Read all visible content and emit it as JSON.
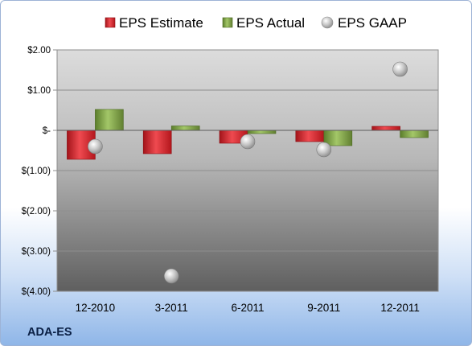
{
  "ticker": "ADA-ES",
  "colors": {
    "estimate": "#d81f26",
    "actual": "#7fa842",
    "gaap": "#b9b9b9"
  },
  "chart_data": {
    "type": "bar",
    "categories": [
      "12-2010",
      "3-2011",
      "6-2011",
      "9-2011",
      "12-2011"
    ],
    "series": [
      {
        "name": "EPS Estimate",
        "type": "bar",
        "values": [
          -0.72,
          -0.58,
          -0.32,
          -0.28,
          0.1
        ]
      },
      {
        "name": "EPS Actual",
        "type": "bar",
        "values": [
          0.52,
          0.11,
          -0.08,
          -0.38,
          -0.18
        ]
      },
      {
        "name": "EPS GAAP",
        "type": "scatter",
        "values": [
          -0.4,
          -3.62,
          -0.28,
          -0.48,
          1.52
        ]
      }
    ],
    "ylim": [
      -4,
      2
    ],
    "yticks": [
      2,
      1,
      0,
      -1,
      -2,
      -3,
      -4
    ],
    "ytick_labels": [
      "$2.00",
      "$1.00",
      "$-",
      "$(1.00)",
      "$(2.00)",
      "$(3.00)",
      "$(4.00)"
    ],
    "legend_position": "top",
    "grid": true
  }
}
